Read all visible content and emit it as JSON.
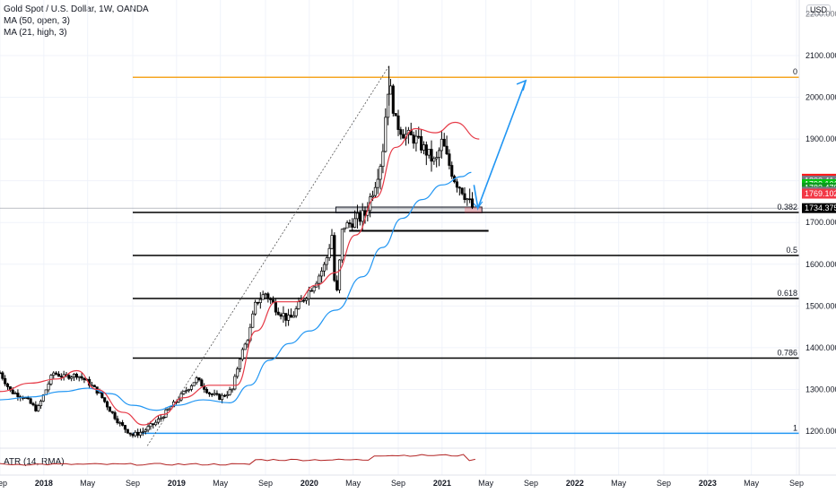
{
  "legend": {
    "symbol": "Gold Spot / U.S. Dollar, 1W, OANDA",
    "ma1": "MA (50, open, 3)",
    "ma2": "MA (21, high, 3)"
  },
  "atr_label": "ATR (14, RMA)",
  "currency_badge": "USD",
  "chart_data": {
    "type": "candlestick",
    "title": "Gold Spot / U.S. Dollar, 1W, OANDA",
    "ylim": [
      1130,
      2190
    ],
    "y_ticks": [
      "2100.000",
      "2000.000",
      "1900.000",
      "1800.000",
      "1700.000",
      "1600.000",
      "1500.000",
      "1400.000",
      "1300.000",
      "1200.000"
    ],
    "y_tick_values": [
      2100,
      2000,
      1900,
      1800,
      1700,
      1600,
      1500,
      1400,
      1300,
      1200
    ],
    "top_tick_partial": "2200.000",
    "x_ticks": [
      {
        "label": "Sep",
        "t": 2017.67,
        "bold": false
      },
      {
        "label": "2018",
        "t": 2018.0,
        "bold": true
      },
      {
        "label": "May",
        "t": 2018.33,
        "bold": false
      },
      {
        "label": "Sep",
        "t": 2018.67,
        "bold": false
      },
      {
        "label": "2019",
        "t": 2019.0,
        "bold": true
      },
      {
        "label": "May",
        "t": 2019.33,
        "bold": false
      },
      {
        "label": "Sep",
        "t": 2019.67,
        "bold": false
      },
      {
        "label": "2020",
        "t": 2020.0,
        "bold": true
      },
      {
        "label": "May",
        "t": 2020.33,
        "bold": false
      },
      {
        "label": "Sep",
        "t": 2020.67,
        "bold": false
      },
      {
        "label": "2021",
        "t": 2021.0,
        "bold": true
      },
      {
        "label": "May",
        "t": 2021.33,
        "bold": false
      },
      {
        "label": "Sep",
        "t": 2021.67,
        "bold": false
      },
      {
        "label": "2022",
        "t": 2022.0,
        "bold": true
      },
      {
        "label": "May",
        "t": 2022.33,
        "bold": false
      },
      {
        "label": "Sep",
        "t": 2022.67,
        "bold": false
      },
      {
        "label": "2023",
        "t": 2023.0,
        "bold": true
      },
      {
        "label": "May",
        "t": 2023.33,
        "bold": false
      },
      {
        "label": "Sep",
        "t": 2023.67,
        "bold": false
      }
    ],
    "price_path": [
      [
        2017.67,
        1340
      ],
      [
        2017.75,
        1295
      ],
      [
        2017.85,
        1282
      ],
      [
        2017.95,
        1250
      ],
      [
        2018.07,
        1340
      ],
      [
        2018.15,
        1330
      ],
      [
        2018.25,
        1335
      ],
      [
        2018.33,
        1318
      ],
      [
        2018.42,
        1290
      ],
      [
        2018.5,
        1250
      ],
      [
        2018.58,
        1215
      ],
      [
        2018.67,
        1190
      ],
      [
        2018.75,
        1200
      ],
      [
        2018.85,
        1222
      ],
      [
        2018.95,
        1255
      ],
      [
        2019.05,
        1290
      ],
      [
        2019.15,
        1325
      ],
      [
        2019.25,
        1290
      ],
      [
        2019.33,
        1280
      ],
      [
        2019.42,
        1300
      ],
      [
        2019.48,
        1380
      ],
      [
        2019.54,
        1425
      ],
      [
        2019.6,
        1510
      ],
      [
        2019.67,
        1530
      ],
      [
        2019.75,
        1495
      ],
      [
        2019.85,
        1465
      ],
      [
        2019.95,
        1515
      ],
      [
        2020.05,
        1560
      ],
      [
        2020.12,
        1600
      ],
      [
        2020.17,
        1670
      ],
      [
        2020.2,
        1500
      ],
      [
        2020.25,
        1690
      ],
      [
        2020.33,
        1700
      ],
      [
        2020.42,
        1720
      ],
      [
        2020.5,
        1800
      ],
      [
        2020.55,
        1860
      ],
      [
        2020.58,
        1980
      ],
      [
        2020.6,
        2040
      ],
      [
        2020.65,
        1940
      ],
      [
        2020.72,
        1910
      ],
      [
        2020.8,
        1900
      ],
      [
        2020.88,
        1870
      ],
      [
        2020.95,
        1840
      ],
      [
        2021.0,
        1895
      ],
      [
        2021.04,
        1850
      ],
      [
        2021.1,
        1800
      ],
      [
        2021.15,
        1780
      ],
      [
        2021.2,
        1750
      ],
      [
        2021.24,
        1730
      ]
    ],
    "ma50_open": [
      [
        2017.67,
        1275
      ],
      [
        2017.9,
        1282
      ],
      [
        2018.15,
        1295
      ],
      [
        2018.33,
        1303
      ],
      [
        2018.5,
        1290
      ],
      [
        2018.67,
        1262
      ],
      [
        2018.85,
        1250
      ],
      [
        2019.0,
        1262
      ],
      [
        2019.2,
        1275
      ],
      [
        2019.4,
        1268
      ],
      [
        2019.55,
        1310
      ],
      [
        2019.7,
        1370
      ],
      [
        2019.85,
        1410
      ],
      [
        2020.0,
        1440
      ],
      [
        2020.2,
        1490
      ],
      [
        2020.4,
        1570
      ],
      [
        2020.55,
        1640
      ],
      [
        2020.7,
        1710
      ],
      [
        2020.85,
        1755
      ],
      [
        2021.0,
        1790
      ],
      [
        2021.15,
        1810
      ],
      [
        2021.22,
        1820
      ]
    ],
    "ma21_high": [
      [
        2017.67,
        1295
      ],
      [
        2017.9,
        1315
      ],
      [
        2018.1,
        1325
      ],
      [
        2018.25,
        1345
      ],
      [
        2018.4,
        1300
      ],
      [
        2018.6,
        1245
      ],
      [
        2018.75,
        1215
      ],
      [
        2018.9,
        1240
      ],
      [
        2019.05,
        1280
      ],
      [
        2019.25,
        1310
      ],
      [
        2019.45,
        1310
      ],
      [
        2019.6,
        1440
      ],
      [
        2019.75,
        1510
      ],
      [
        2019.9,
        1510
      ],
      [
        2020.05,
        1550
      ],
      [
        2020.2,
        1580
      ],
      [
        2020.35,
        1670
      ],
      [
        2020.5,
        1760
      ],
      [
        2020.65,
        1880
      ],
      [
        2020.8,
        1925
      ],
      [
        2020.95,
        1915
      ],
      [
        2021.1,
        1940
      ],
      [
        2021.28,
        1900
      ]
    ],
    "fib_levels": [
      {
        "label": "0",
        "price": 2048,
        "color": "#f5a623"
      },
      {
        "label": "0.382",
        "price": 1724,
        "color": "#000000"
      },
      {
        "label": "0.5",
        "price": 1621,
        "color": "#000000"
      },
      {
        "label": "0.618",
        "price": 1518,
        "color": "#000000"
      },
      {
        "label": "0.786",
        "price": 1375,
        "color": "#000000"
      },
      {
        "label": "1",
        "price": 1195,
        "color": "#2196f3"
      }
    ],
    "support_line": {
      "price": 1680,
      "t_start": 2020.3,
      "t_end": 2021.35
    },
    "support_zone": {
      "p_top": 1737,
      "p_bottom": 1723,
      "t_start": 2020.2,
      "t_end": 2021.3
    },
    "dotted_trend": {
      "t1": 2018.78,
      "p1": 1165,
      "t2": 2020.6,
      "p2": 2075
    },
    "projection_arrow": [
      [
        2021.24,
        1790
      ],
      [
        2021.27,
        1735
      ],
      [
        2021.63,
        2040
      ]
    ],
    "last_price": "1734.375",
    "last_price_value": 1734.375,
    "price_badges": [
      {
        "label": "1804.891",
        "price": 1804.891,
        "color": "#ff1a1a"
      },
      {
        "label": "1800.414",
        "price": 1800.414,
        "color": "#787b86"
      },
      {
        "label": "1792.101",
        "price": 1792.101,
        "color": "#00c410"
      },
      {
        "label": "1783.479",
        "price": 1783.479,
        "color": "#0e9a20"
      },
      {
        "label": "1773.835",
        "price": 1773.835,
        "color": "#787b86"
      },
      {
        "label": "1769.102",
        "price": 1769.102,
        "color": "#f23645"
      },
      {
        "label": "1734.375",
        "price": 1734.375,
        "color": "#000000"
      }
    ]
  },
  "colors": {
    "ma50": "#2196f3",
    "ma21": "#e63946",
    "candles": "#000000",
    "atr": "#b22222",
    "arrow": "#2196f3"
  }
}
